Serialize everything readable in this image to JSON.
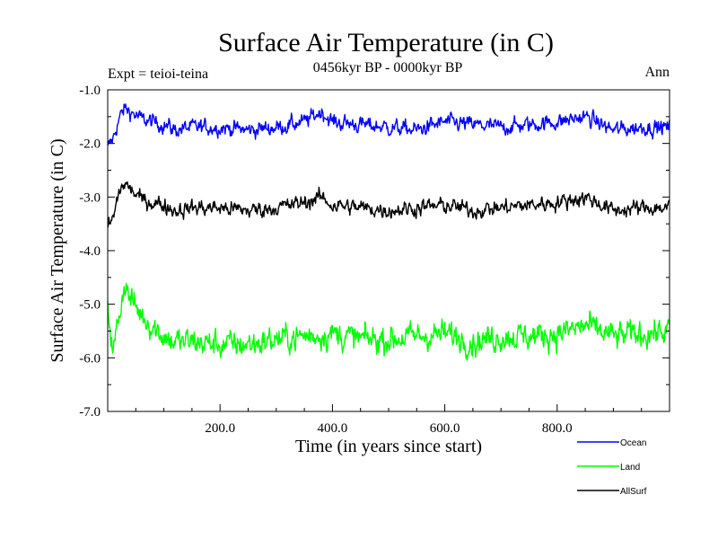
{
  "chart_data": {
    "type": "line",
    "title": "Surface Air Temperature (in C)",
    "subtitle": "0456kyr BP - 0000kyr BP",
    "left_note": "Expt = teioi-teina",
    "right_note": "Ann",
    "xlabel": "Time (in years since start)",
    "ylabel": "Surface Air Temperature (in C)",
    "xlim": [
      0,
      1000
    ],
    "ylim": [
      -7.0,
      -1.0
    ],
    "x_ticks": [
      200,
      400,
      600,
      800
    ],
    "x_tick_labels": [
      "200.0",
      "400.0",
      "600.0",
      "800.0"
    ],
    "y_ticks": [
      -1.0,
      -2.0,
      -3.0,
      -4.0,
      -5.0,
      -6.0,
      -7.0
    ],
    "y_tick_labels": [
      "-1.0",
      "-2.0",
      "-3.0",
      "-4.0",
      "-5.0",
      "-6.0",
      "-7.0"
    ],
    "series": [
      {
        "name": "Ocean",
        "color": "#0000ff",
        "x": [
          0,
          10,
          20,
          30,
          40,
          60,
          80,
          100,
          120,
          150,
          200,
          250,
          300,
          350,
          380,
          400,
          450,
          500,
          550,
          600,
          650,
          700,
          750,
          800,
          850,
          900,
          950,
          1000
        ],
        "values": [
          -2.1,
          -1.9,
          -1.55,
          -1.35,
          -1.4,
          -1.55,
          -1.6,
          -1.65,
          -1.75,
          -1.7,
          -1.7,
          -1.75,
          -1.7,
          -1.6,
          -1.4,
          -1.6,
          -1.65,
          -1.7,
          -1.75,
          -1.6,
          -1.65,
          -1.7,
          -1.65,
          -1.6,
          -1.5,
          -1.75,
          -1.7,
          -1.7
        ],
        "noise": 0.14
      },
      {
        "name": "Land",
        "color": "#00ff00",
        "x": [
          0,
          10,
          20,
          30,
          40,
          60,
          80,
          100,
          120,
          150,
          200,
          250,
          300,
          350,
          400,
          450,
          500,
          550,
          600,
          650,
          700,
          750,
          800,
          850,
          900,
          950,
          1000
        ],
        "values": [
          -5.0,
          -5.9,
          -5.2,
          -4.6,
          -4.9,
          -5.2,
          -5.4,
          -5.6,
          -5.7,
          -5.7,
          -5.75,
          -5.75,
          -5.65,
          -5.6,
          -5.55,
          -5.65,
          -5.65,
          -5.6,
          -5.55,
          -5.7,
          -5.6,
          -5.6,
          -5.55,
          -5.4,
          -5.6,
          -5.55,
          -5.5
        ],
        "noise": 0.24
      },
      {
        "name": "AllSurf",
        "color": "#000000",
        "x": [
          0,
          10,
          20,
          30,
          40,
          60,
          80,
          100,
          120,
          150,
          200,
          250,
          300,
          350,
          380,
          400,
          450,
          500,
          550,
          600,
          650,
          700,
          750,
          800,
          850,
          900,
          950,
          1000
        ],
        "values": [
          -3.55,
          -3.4,
          -2.9,
          -2.75,
          -2.85,
          -3.05,
          -3.1,
          -3.15,
          -3.25,
          -3.2,
          -3.2,
          -3.25,
          -3.2,
          -3.1,
          -3.0,
          -3.15,
          -3.2,
          -3.25,
          -3.2,
          -3.15,
          -3.25,
          -3.2,
          -3.15,
          -3.1,
          -3.0,
          -3.25,
          -3.2,
          -3.2
        ],
        "noise": 0.14
      }
    ],
    "legend": [
      "Ocean",
      "Land",
      "AllSurf"
    ],
    "legend_position": "bottom-right",
    "grid": false
  }
}
